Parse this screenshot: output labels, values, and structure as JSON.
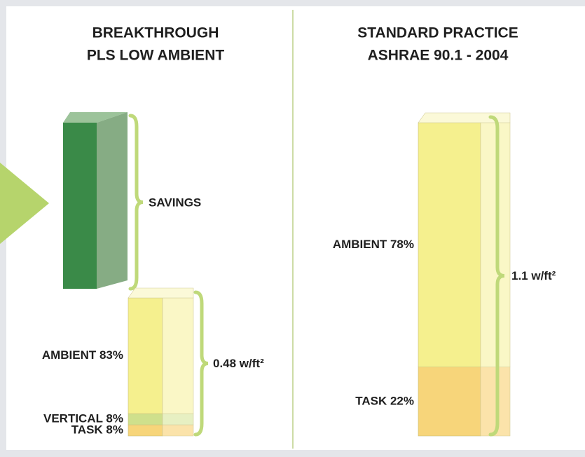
{
  "chart_data": [
    {
      "type": "stacked_bar3d",
      "title": [
        "BREAKTHROUGH",
        "PLS LOW AMBIENT"
      ],
      "savings_label": "SAVINGS",
      "total": 0.48,
      "total_label": "0.48 w/ft²",
      "segments": [
        {
          "label": "AMBIENT 83%",
          "value": 83,
          "color": "#f5f08e",
          "side": "#faf7c6"
        },
        {
          "label": "VERTICAL 8%",
          "value": 8,
          "color": "#cfe08c",
          "side": "#e7f0c2"
        },
        {
          "label": "TASK 8%",
          "value": 8,
          "color": "#f7d57a",
          "side": "#fbe3aa"
        }
      ]
    },
    {
      "type": "stacked_bar3d",
      "title": [
        "STANDARD PRACTICE",
        "ASHRAE 90.1 - 2004"
      ],
      "total": 1.1,
      "total_label": "1.1 w/ft²",
      "segments": [
        {
          "label": "AMBIENT 78%",
          "value": 78,
          "color": "#f5f08e",
          "side": "#faf7c6"
        },
        {
          "label": "TASK 22%",
          "value": 22,
          "color": "#f7d57a",
          "side": "#fbe3aa"
        }
      ]
    }
  ]
}
